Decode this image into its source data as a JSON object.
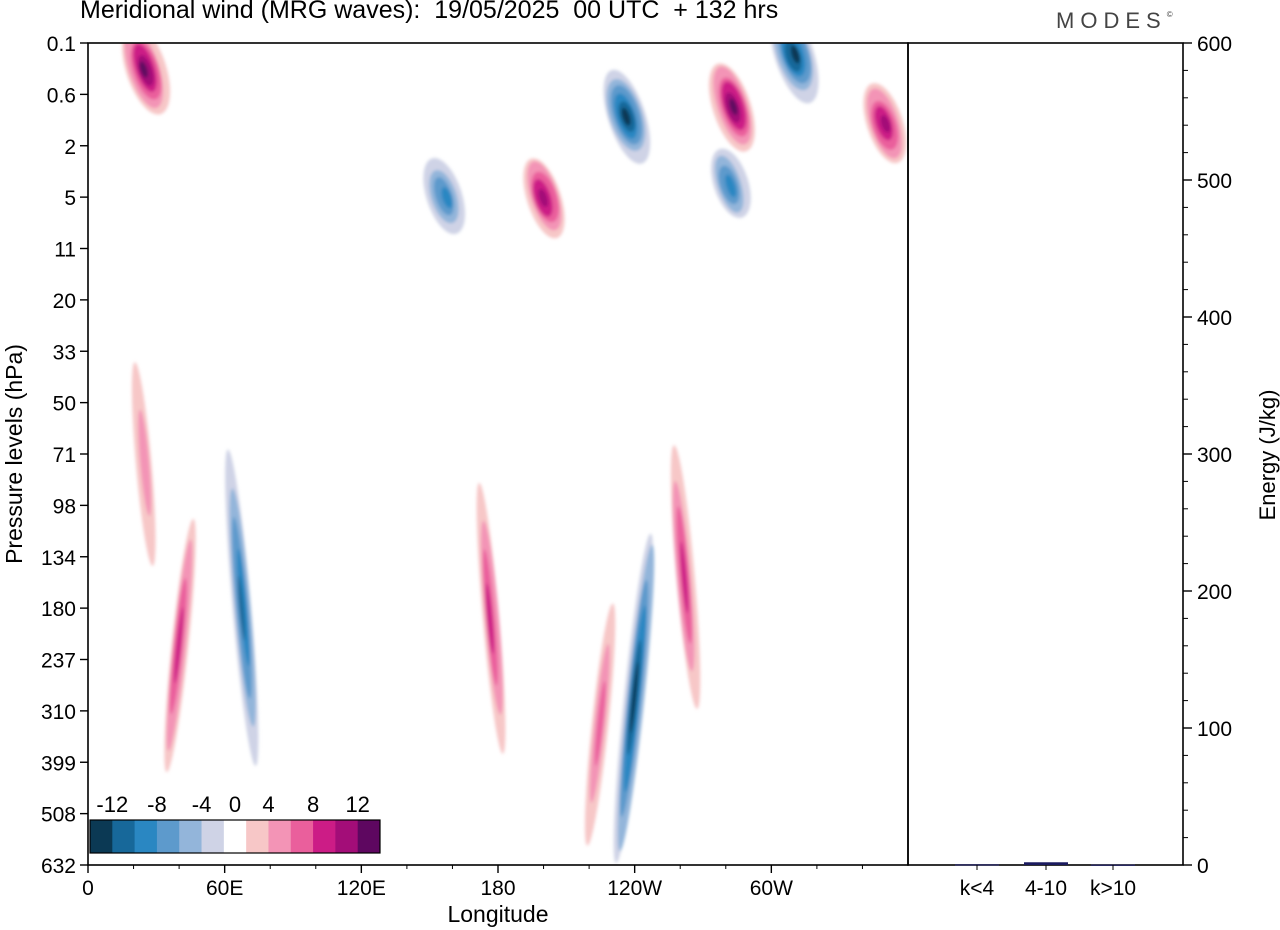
{
  "header": {
    "title": "Meridional wind (MRG waves):  19/05/2025  00 UTC  + 132 hrs",
    "logo_text": "MODES",
    "logo_mark": "©"
  },
  "chart_data": [
    {
      "type": "heatmap",
      "title": "Meridional wind (MRG waves):  19/05/2025  00 UTC  + 132 hrs",
      "xlabel": "Longitude",
      "ylabel": "Pressure levels (hPa)",
      "x_ticks": [
        "0",
        "60E",
        "120E",
        "180",
        "120W",
        "60W"
      ],
      "x_tick_degrees": [
        0,
        60,
        120,
        180,
        240,
        300
      ],
      "xlim": [
        0,
        360
      ],
      "y_ticks": [
        "0.1",
        "0.6",
        "2",
        "5",
        "11",
        "20",
        "33",
        "50",
        "71",
        "98",
        "134",
        "180",
        "237",
        "310",
        "399",
        "508",
        "632"
      ],
      "y_axis": "pressure, top 0.1 hPa to bottom 632 hPa, non-linear level spacing",
      "colorbar": {
        "tick_labels": [
          "-12",
          "-8",
          "-4",
          "0",
          "4",
          "8",
          "12"
        ],
        "boundaries": [
          -14,
          -12,
          -10,
          -8,
          -6,
          -4,
          -2,
          2,
          4,
          6,
          8,
          10,
          12,
          14
        ],
        "colors": [
          "#0b3954",
          "#17689a",
          "#2a87c2",
          "#5d9acc",
          "#93b5da",
          "#cfd3e6",
          "#ffffff",
          "#f7c7c7",
          "#f394b6",
          "#ea5f9c",
          "#cc1c86",
          "#a30d78",
          "#5e0760"
        ]
      },
      "features": [
        {
          "sign": "positive",
          "peak": 13,
          "lon": 25,
          "pressure": 0.25
        },
        {
          "sign": "negative",
          "peak": -13,
          "lon": 310,
          "pressure": 0.15
        },
        {
          "sign": "positive",
          "peak": 13,
          "lon": 283,
          "pressure": 0.8
        },
        {
          "sign": "negative",
          "peak": -13,
          "lon": 236,
          "pressure": 1.0
        },
        {
          "sign": "positive",
          "peak": 11,
          "lon": 200,
          "pressure": 5
        },
        {
          "sign": "negative",
          "peak": -8,
          "lon": 157,
          "pressure": 5
        },
        {
          "sign": "negative",
          "peak": -8,
          "lon": 282,
          "pressure": 4
        },
        {
          "sign": "positive",
          "peak": 10,
          "lon": 350,
          "pressure": 1.2
        },
        {
          "sign": "negative",
          "peak": -10,
          "lon": 68,
          "pressure": 180
        },
        {
          "sign": "positive",
          "peak": 8,
          "lon": 40,
          "pressure": 220
        },
        {
          "sign": "positive",
          "peak": 8,
          "lon": 177,
          "pressure": 190
        },
        {
          "sign": "negative",
          "peak": -13,
          "lon": 240,
          "pressure": 290
        },
        {
          "sign": "positive",
          "peak": 8,
          "lon": 262,
          "pressure": 150
        },
        {
          "sign": "positive",
          "peak": 6,
          "lon": 225,
          "pressure": 330
        },
        {
          "sign": "positive",
          "peak": 5,
          "lon": 25,
          "pressure": 75
        }
      ]
    },
    {
      "type": "bar",
      "ylabel": "Energy (J/kg)",
      "ylim": [
        0,
        600
      ],
      "y_ticks": [
        "0",
        "100",
        "200",
        "300",
        "400",
        "500",
        "600"
      ],
      "categories": [
        "k<4",
        "4-10",
        "k>10"
      ],
      "values": [
        0.5,
        2,
        0.3
      ],
      "bar_color": "#1a1a5e"
    }
  ]
}
